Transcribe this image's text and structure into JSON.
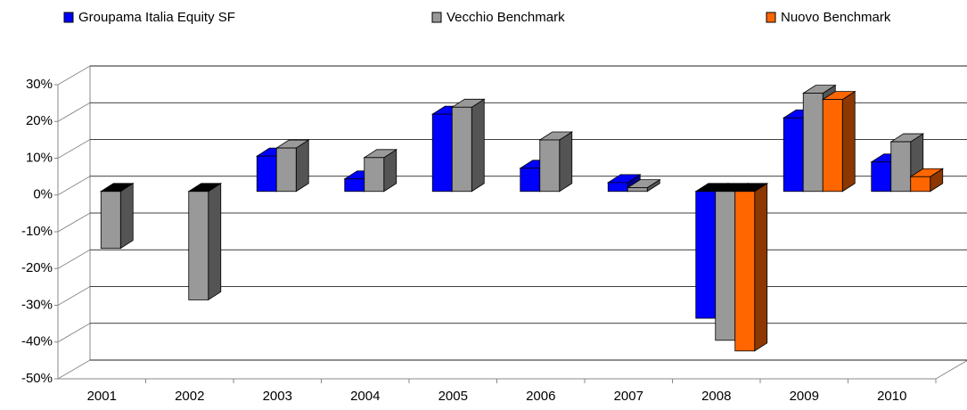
{
  "chart_data": {
    "type": "bar3d",
    "categories": [
      "2001",
      "2002",
      "2003",
      "2004",
      "2005",
      "2006",
      "2007",
      "2008",
      "2009",
      "2010"
    ],
    "series": [
      {
        "name": "Groupama Italia Equity SF",
        "color": "#0000ff",
        "values": [
          null,
          null,
          9.6,
          3.4,
          21,
          6.3,
          2.4,
          -34.5,
          20,
          8
        ]
      },
      {
        "name": "Vecchio Benchmark",
        "color": "#999999",
        "values": [
          -15.5,
          -29.5,
          11.8,
          9.2,
          22.9,
          14,
          1,
          -40.5,
          26.7,
          13.5
        ]
      },
      {
        "name": "Nuovo Benchmark",
        "color": "#ff6600",
        "values": [
          null,
          null,
          null,
          null,
          null,
          null,
          null,
          -43.4,
          25,
          4
        ]
      }
    ],
    "ylim": [
      -50,
      30
    ],
    "yticks": [
      {
        "value": -50,
        "label": "-50%"
      },
      {
        "value": -40,
        "label": "-40%"
      },
      {
        "value": -30,
        "label": "-30%"
      },
      {
        "value": -20,
        "label": "-20%"
      },
      {
        "value": -10,
        "label": "-10%"
      },
      {
        "value": 0,
        "label": "0%"
      },
      {
        "value": 10,
        "label": "10%"
      },
      {
        "value": 20,
        "label": "20%"
      },
      {
        "value": 30,
        "label": "30%"
      }
    ],
    "grid": true
  }
}
